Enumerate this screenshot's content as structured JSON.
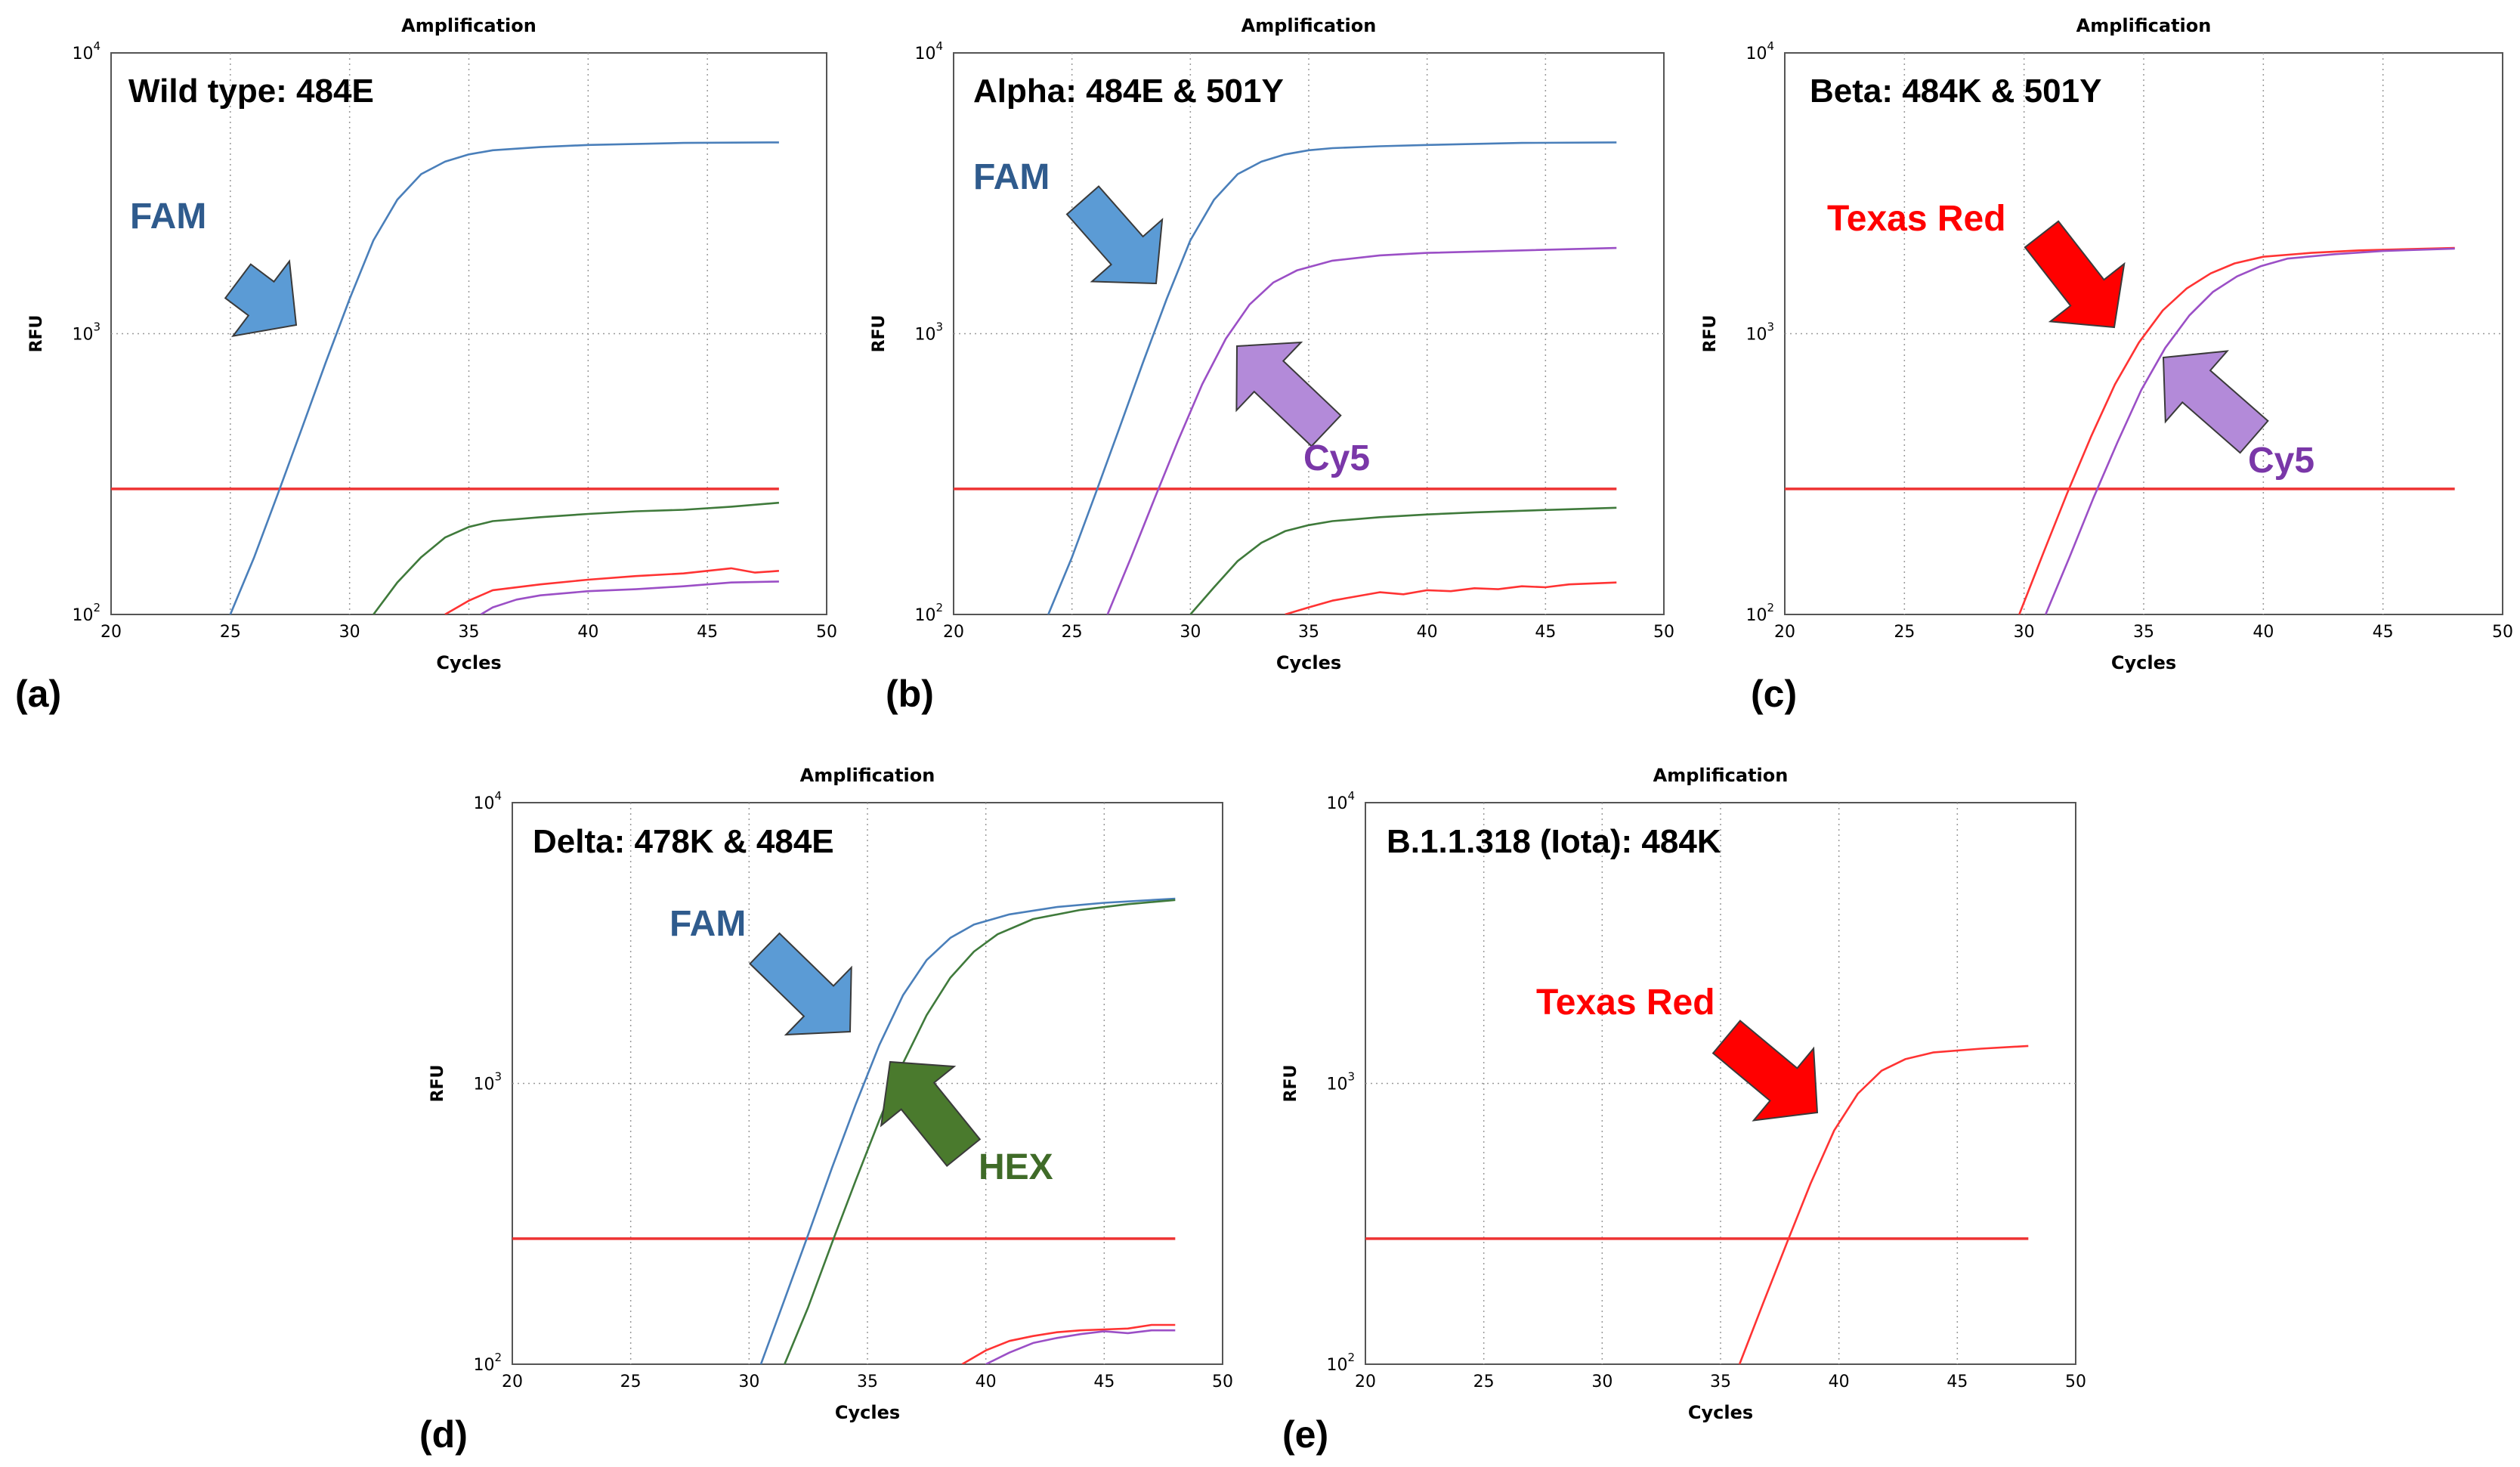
{
  "colors": {
    "fam": "#4a7fba",
    "hex": "#3f7a3b",
    "cy5": "#9b4fc6",
    "texas_red": "#ff3333",
    "threshold": "#ee3333",
    "grid": "#999999",
    "annotation_fam": "#2f5b8d",
    "annotation_cy5": "#7a37a8",
    "annotation_hex": "#3f6b28",
    "annotation_red": "#ff0000",
    "arrow_fam": "#5b9bd5",
    "arrow_cy5": "#b38ad9",
    "arrow_hex": "#4a7a2d",
    "arrow_red": "#ff0000"
  },
  "chart_data": [
    {
      "panel_label": "(a)",
      "type": "line",
      "title": "Amplification",
      "xlabel": "Cycles",
      "ylabel": "RFU",
      "x_ticks": [
        "20",
        "25",
        "30",
        "35",
        "40",
        "45",
        "50"
      ],
      "y_ticks": [
        {
          "base": "10",
          "exp": "2"
        },
        {
          "base": "10",
          "exp": "3"
        },
        {
          "base": "10",
          "exp": "4"
        }
      ],
      "xlim": [
        20,
        50
      ],
      "ylim_log10": [
        2,
        4
      ],
      "grid": true,
      "variant_label": "Wild type: 484E",
      "threshold": 280,
      "series": [
        {
          "name": "FAM",
          "color_key": "fam",
          "x": [
            25,
            26,
            27,
            28,
            29,
            30,
            31,
            32,
            33,
            34,
            35,
            36,
            38,
            40,
            44,
            48
          ],
          "y": [
            100,
            160,
            270,
            460,
            790,
            1330,
            2150,
            3000,
            3700,
            4100,
            4350,
            4500,
            4620,
            4700,
            4780,
            4800
          ]
        },
        {
          "name": "HEX",
          "color_key": "hex",
          "x": [
            31,
            32,
            33,
            34,
            35,
            36,
            38,
            40,
            42,
            44,
            46,
            48
          ],
          "y": [
            100,
            130,
            160,
            188,
            205,
            215,
            222,
            228,
            233,
            236,
            242,
            250
          ]
        },
        {
          "name": "Texas Red",
          "color_key": "texas_red",
          "x": [
            34,
            35,
            36,
            38,
            40,
            42,
            44,
            45,
            46,
            47,
            48
          ],
          "y": [
            100,
            112,
            122,
            128,
            133,
            137,
            140,
            143,
            146,
            141,
            143
          ]
        },
        {
          "name": "Cy5",
          "color_key": "cy5",
          "x": [
            35.5,
            36,
            37,
            38,
            40,
            42,
            44,
            46,
            48
          ],
          "y": [
            100,
            106,
            113,
            117,
            121,
            123,
            126,
            130,
            131
          ]
        }
      ],
      "annotations": [
        {
          "text": "FAM",
          "color_key": "annotation_fam"
        }
      ],
      "arrows": [
        {
          "name": "fam-arrow",
          "color_key": "arrow_fam"
        }
      ]
    },
    {
      "panel_label": "(b)",
      "type": "line",
      "title": "Amplification",
      "xlabel": "Cycles",
      "ylabel": "RFU",
      "x_ticks": [
        "20",
        "25",
        "30",
        "35",
        "40",
        "45",
        "50"
      ],
      "y_ticks": [
        {
          "base": "10",
          "exp": "2"
        },
        {
          "base": "10",
          "exp": "3"
        },
        {
          "base": "10",
          "exp": "4"
        }
      ],
      "xlim": [
        20,
        50
      ],
      "ylim_log10": [
        2,
        4
      ],
      "grid": true,
      "variant_label": "Alpha: 484E & 501Y",
      "threshold": 280,
      "series": [
        {
          "name": "FAM",
          "color_key": "fam",
          "x": [
            24,
            25,
            26,
            27,
            28,
            29,
            30,
            31,
            32,
            33,
            34,
            35,
            36,
            38,
            40,
            44,
            48
          ],
          "y": [
            100,
            160,
            270,
            460,
            790,
            1330,
            2150,
            3000,
            3700,
            4100,
            4350,
            4500,
            4580,
            4650,
            4700,
            4780,
            4800
          ]
        },
        {
          "name": "Cy5",
          "color_key": "cy5",
          "x": [
            26.5,
            27.5,
            28.5,
            29.5,
            30.5,
            31.5,
            32.5,
            33.5,
            34.5,
            36,
            38,
            40,
            44,
            48
          ],
          "y": [
            100,
            160,
            260,
            420,
            660,
            960,
            1270,
            1520,
            1680,
            1820,
            1900,
            1940,
            1980,
            2020
          ]
        },
        {
          "name": "HEX",
          "color_key": "hex",
          "x": [
            30,
            31,
            32,
            33,
            34,
            35,
            36,
            38,
            40,
            42,
            44,
            46,
            48
          ],
          "y": [
            100,
            125,
            155,
            180,
            198,
            208,
            215,
            222,
            227,
            231,
            234,
            237,
            240
          ]
        },
        {
          "name": "Texas Red",
          "color_key": "texas_red",
          "x": [
            34,
            35,
            36,
            37,
            38,
            39,
            40,
            41,
            42,
            43,
            44,
            45,
            46,
            47,
            48
          ],
          "y": [
            100,
            106,
            112,
            116,
            120,
            118,
            122,
            121,
            124,
            123,
            126,
            125,
            128,
            129,
            130
          ]
        }
      ],
      "annotations": [
        {
          "text": "FAM",
          "color_key": "annotation_fam"
        },
        {
          "text": "Cy5",
          "color_key": "annotation_cy5"
        }
      ],
      "arrows": [
        {
          "name": "fam-arrow",
          "color_key": "arrow_fam"
        },
        {
          "name": "cy5-arrow",
          "color_key": "arrow_cy5"
        }
      ]
    },
    {
      "panel_label": "(c)",
      "type": "line",
      "title": "Amplification",
      "xlabel": "Cycles",
      "ylabel": "RFU",
      "x_ticks": [
        "20",
        "25",
        "30",
        "35",
        "40",
        "45",
        "50"
      ],
      "y_ticks": [
        {
          "base": "10",
          "exp": "2"
        },
        {
          "base": "10",
          "exp": "3"
        },
        {
          "base": "10",
          "exp": "4"
        }
      ],
      "xlim": [
        20,
        50
      ],
      "ylim_log10": [
        2,
        4
      ],
      "grid": true,
      "variant_label": "Beta: 484K & 501Y",
      "threshold": 280,
      "series": [
        {
          "name": "Texas Red",
          "color_key": "texas_red",
          "x": [
            29.8,
            30.8,
            31.8,
            32.8,
            33.8,
            34.8,
            35.8,
            36.8,
            37.8,
            38.8,
            40,
            42,
            44,
            48
          ],
          "y": [
            100,
            165,
            270,
            430,
            660,
            930,
            1210,
            1450,
            1640,
            1780,
            1880,
            1940,
            1980,
            2020
          ]
        },
        {
          "name": "Cy5",
          "color_key": "cy5",
          "x": [
            30.9,
            31.9,
            32.9,
            33.9,
            34.9,
            35.9,
            36.9,
            37.9,
            38.9,
            39.9,
            41,
            43,
            45,
            48
          ],
          "y": [
            100,
            160,
            260,
            410,
            630,
            890,
            1160,
            1410,
            1600,
            1740,
            1850,
            1920,
            1970,
            2010
          ]
        }
      ],
      "annotations": [
        {
          "text": "Texas Red",
          "color_key": "annotation_red"
        },
        {
          "text": "Cy5",
          "color_key": "annotation_cy5"
        }
      ],
      "arrows": [
        {
          "name": "texas-red-arrow",
          "color_key": "arrow_red"
        },
        {
          "name": "cy5-arrow",
          "color_key": "arrow_cy5"
        }
      ]
    },
    {
      "panel_label": "(d)",
      "type": "line",
      "title": "Amplification",
      "xlabel": "Cycles",
      "ylabel": "RFU",
      "x_ticks": [
        "20",
        "25",
        "30",
        "35",
        "40",
        "45",
        "50"
      ],
      "y_ticks": [
        {
          "base": "10",
          "exp": "2"
        },
        {
          "base": "10",
          "exp": "3"
        },
        {
          "base": "10",
          "exp": "4"
        }
      ],
      "xlim": [
        20,
        50
      ],
      "ylim_log10": [
        2,
        4
      ],
      "grid": true,
      "variant_label": "Delta: 478K & 484E",
      "threshold": 280,
      "series": [
        {
          "name": "FAM",
          "color_key": "fam",
          "x": [
            30.5,
            31.5,
            32.5,
            33.5,
            34.5,
            35.5,
            36.5,
            37.5,
            38.5,
            39.5,
            41,
            43,
            45,
            48
          ],
          "y": [
            100,
            170,
            290,
            500,
            840,
            1370,
            2060,
            2750,
            3300,
            3680,
            4000,
            4250,
            4400,
            4550
          ]
        },
        {
          "name": "HEX",
          "color_key": "hex",
          "x": [
            31.5,
            32.5,
            33.5,
            34.5,
            35.5,
            36.5,
            37.5,
            38.5,
            39.5,
            40.5,
            42,
            44,
            46,
            48
          ],
          "y": [
            100,
            160,
            270,
            450,
            740,
            1180,
            1750,
            2380,
            2950,
            3400,
            3850,
            4150,
            4350,
            4500
          ]
        },
        {
          "name": "Texas Red",
          "color_key": "texas_red",
          "x": [
            39,
            40,
            41,
            42,
            43,
            44,
            45,
            46,
            47,
            48
          ],
          "y": [
            100,
            112,
            121,
            126,
            130,
            132,
            133,
            134,
            138,
            138
          ]
        },
        {
          "name": "Cy5",
          "color_key": "cy5",
          "x": [
            40,
            41,
            42,
            43,
            44,
            45,
            46,
            47,
            48
          ],
          "y": [
            100,
            110,
            119,
            124,
            128,
            131,
            129,
            132,
            132
          ]
        }
      ],
      "annotations": [
        {
          "text": "FAM",
          "color_key": "annotation_fam"
        },
        {
          "text": "HEX",
          "color_key": "annotation_hex"
        }
      ],
      "arrows": [
        {
          "name": "fam-arrow",
          "color_key": "arrow_fam"
        },
        {
          "name": "hex-arrow",
          "color_key": "arrow_hex"
        }
      ]
    },
    {
      "panel_label": "(e)",
      "type": "line",
      "title": "Amplification",
      "xlabel": "Cycles",
      "ylabel": "RFU",
      "x_ticks": [
        "20",
        "25",
        "30",
        "35",
        "40",
        "45",
        "50"
      ],
      "y_ticks": [
        {
          "base": "10",
          "exp": "2"
        },
        {
          "base": "10",
          "exp": "3"
        },
        {
          "base": "10",
          "exp": "4"
        }
      ],
      "xlim": [
        20,
        50
      ],
      "ylim_log10": [
        2,
        4
      ],
      "grid": true,
      "variant_label": "B.1.1.318 (Iota): 484K",
      "threshold": 280,
      "series": [
        {
          "name": "Texas Red",
          "color_key": "texas_red",
          "x": [
            35.8,
            36.8,
            37.8,
            38.8,
            39.8,
            40.8,
            41.8,
            42.8,
            44,
            46,
            48
          ],
          "y": [
            100,
            165,
            270,
            440,
            680,
            920,
            1110,
            1220,
            1290,
            1330,
            1360
          ]
        }
      ],
      "annotations": [
        {
          "text": "Texas Red",
          "color_key": "annotation_red"
        }
      ],
      "arrows": [
        {
          "name": "texas-red-arrow",
          "color_key": "arrow_red"
        }
      ]
    }
  ]
}
